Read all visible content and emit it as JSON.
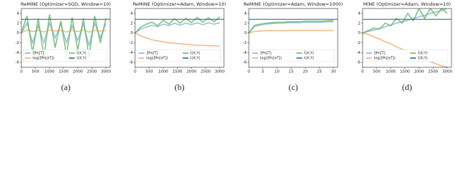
{
  "chart_data": [
    {
      "type": "line",
      "title": "ReMINE (Optimizer=SGD, Window=10)",
      "caption": "(a)",
      "x": [
        0,
        200,
        400,
        600,
        800,
        1000,
        1200,
        1400,
        1600,
        1800,
        2000,
        2200,
        2400,
        2600,
        2800,
        3000
      ],
      "xlim": [
        0,
        3150
      ],
      "xticks": [
        0,
        500,
        1000,
        1500,
        2000,
        2500,
        3000
      ],
      "ylim": [
        -7,
        5
      ],
      "yticks": [
        -6,
        -4,
        -2,
        0,
        2,
        4
      ],
      "series": [
        {
          "name": "ẑPn[T]",
          "color": "#7fb1d8",
          "values": [
            0,
            2,
            -2,
            1.5,
            -2,
            2,
            -1,
            1.8,
            -2,
            1.5,
            -1.5,
            1.8,
            -2.5,
            2,
            -1,
            2
          ]
        },
        {
          "name": "log(ẑPn[eT])",
          "color": "#f5a66a",
          "values": [
            0,
            0.6,
            0.3,
            0.5,
            0.2,
            0.6,
            0.4,
            0.5,
            0.2,
            0.5,
            0.3,
            0.6,
            0.2,
            0.5,
            0.4,
            0.5
          ]
        },
        {
          "name": "Ĩ(X;Y)",
          "color": "#5cb85c",
          "values": [
            0,
            3.5,
            -4,
            3,
            -5,
            3.8,
            -3,
            2.5,
            -4.5,
            3.2,
            -3.5,
            3,
            -5,
            3.5,
            -2,
            3
          ]
        },
        {
          "name": "I(X;Y)",
          "color": "#1f5f8b",
          "value": 2.8
        }
      ]
    },
    {
      "type": "line",
      "title": "ReMINE (Optimizer=Adam, Window=10)",
      "caption": "(b)",
      "x": [
        0,
        200,
        400,
        600,
        800,
        1000,
        1200,
        1400,
        1600,
        1800,
        2000,
        2200,
        2400,
        2600,
        2800,
        3000
      ],
      "xlim": [
        0,
        3150
      ],
      "xticks": [
        0,
        500,
        1000,
        1500,
        2000,
        2500,
        3000
      ],
      "ylim": [
        -7,
        5
      ],
      "yticks": [
        -6,
        -4,
        -2,
        0,
        2,
        4
      ],
      "series": [
        {
          "name": "ẑPn[T]",
          "color": "#7fb1d8",
          "values": [
            0,
            0.8,
            1.2,
            1.6,
            1.3,
            1.8,
            1.5,
            2,
            1.6,
            2,
            1.7,
            2.1,
            1.7,
            2.1,
            1.8,
            2.1
          ]
        },
        {
          "name": "log(ẑPn[eT])",
          "color": "#f5a66a",
          "values": [
            0,
            -0.6,
            -1,
            -1.4,
            -1.6,
            -1.8,
            -2,
            -2.1,
            -2.2,
            -2.3,
            -2.4,
            -2.5,
            -2.5,
            -2.6,
            -2.6,
            -2.7
          ]
        },
        {
          "name": "Ĩ(X;Y)",
          "color": "#5cb85c",
          "values": [
            0,
            1.2,
            1.8,
            2.2,
            1.5,
            2.6,
            1.8,
            2.9,
            2,
            3,
            2.1,
            3.2,
            2.2,
            3.1,
            2.3,
            3.3
          ]
        },
        {
          "name": "I(X;Y)",
          "color": "#1f5f8b",
          "value": 2.8
        }
      ]
    },
    {
      "type": "line",
      "title": "ReMINE (Optimizer=Adam, Window=1000)",
      "caption": "(c)",
      "x": [
        0,
        2,
        4,
        6,
        8,
        10,
        12,
        14,
        16,
        18,
        20,
        22,
        24,
        26,
        28,
        30
      ],
      "xlim": [
        0,
        31.5
      ],
      "xticks": [
        0,
        5,
        10,
        15,
        20,
        25,
        30
      ],
      "ylim": [
        -7,
        5
      ],
      "yticks": [
        -6,
        -4,
        -2,
        0,
        2,
        4
      ],
      "series": [
        {
          "name": "ẑPn[T]",
          "color": "#7fb1d8",
          "values": [
            0,
            1.3,
            1.6,
            1.8,
            1.9,
            2,
            2,
            2.1,
            2.1,
            2.1,
            2.2,
            2.2,
            2.2,
            2.2,
            2.3,
            2.3
          ]
        },
        {
          "name": "log(ẑPn[eT])",
          "color": "#f5a66a",
          "values": [
            0,
            0.3,
            0.4,
            0.5,
            0.5,
            0.5,
            0.5,
            0.5,
            0.5,
            0.5,
            0.5,
            0.5,
            0.5,
            0.5,
            0.5,
            0.5
          ]
        },
        {
          "name": "Ĩ(X;Y)",
          "color": "#5cb85c",
          "values": [
            0,
            1.6,
            1.8,
            2,
            2.1,
            2.2,
            2.2,
            2.3,
            2.3,
            2.3,
            2.4,
            2.4,
            2.4,
            2.4,
            2.5,
            2.5
          ]
        },
        {
          "name": "I(X;Y)",
          "color": "#1f5f8b",
          "value": 2.8
        }
      ]
    },
    {
      "type": "line",
      "title": "MINE (Optimizer=Adam, Window=10)",
      "caption": "(d)",
      "x": [
        0,
        200,
        400,
        600,
        800,
        1000,
        1200,
        1400,
        1600,
        1800,
        2000,
        2200,
        2400,
        2600,
        2800,
        3000
      ],
      "xlim": [
        0,
        3150
      ],
      "xticks": [
        0,
        500,
        1000,
        1500,
        2000,
        2500,
        3000
      ],
      "ylim": [
        -7,
        5
      ],
      "yticks": [
        -6,
        -4,
        -2,
        0,
        2,
        4
      ],
      "series": [
        {
          "name": "ẑPn[T]",
          "color": "#7fb1d8",
          "values": [
            0,
            0.3,
            0.6,
            0.9,
            1.3,
            1.6,
            2,
            2.3,
            2.6,
            3,
            3.3,
            3.6,
            4,
            4.3,
            4.6,
            5
          ]
        },
        {
          "name": "log(ẑPn[eT])",
          "color": "#f5a66a",
          "values": [
            0,
            -0.3,
            -0.8,
            -1.2,
            -1.8,
            -2.2,
            -2.8,
            -3.3,
            -3.8,
            -4.3,
            -4.8,
            -5.3,
            -5.8,
            -6.3,
            -6.7,
            -7
          ]
        },
        {
          "name": "Ĩ(X;Y)",
          "color": "#5cb85c",
          "values": [
            0,
            0.5,
            1,
            0.8,
            2,
            1.5,
            3,
            2,
            4,
            2.5,
            5,
            3,
            5,
            3.5,
            5,
            4
          ]
        },
        {
          "name": "I(X;Y)",
          "color": "#1f5f8b",
          "value": 2.8
        }
      ]
    }
  ]
}
